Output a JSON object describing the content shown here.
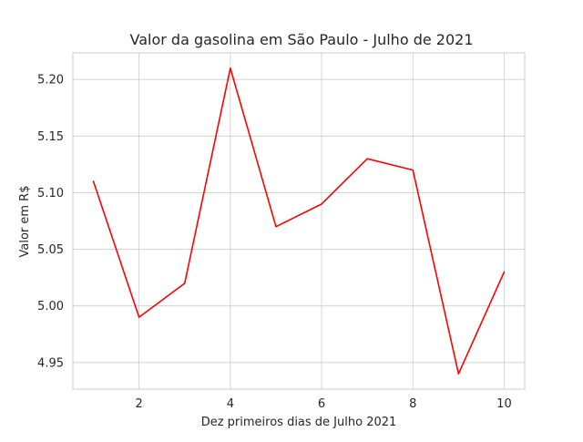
{
  "chart_data": {
    "type": "line",
    "title": "Valor da gasolina em São Paulo - Julho de 2021",
    "xlabel": "Dez primeiros dias de Julho 2021",
    "ylabel": "Valor em R$",
    "x": [
      1,
      2,
      3,
      4,
      5,
      6,
      7,
      8,
      9,
      10
    ],
    "series": [
      {
        "values": [
          5.11,
          4.99,
          5.02,
          5.21,
          5.07,
          5.09,
          5.13,
          5.12,
          4.94,
          5.03
        ],
        "color": "#ff0000"
      }
    ],
    "xticks": [
      2,
      4,
      6,
      8,
      10
    ],
    "xtick_labels": [
      "2",
      "4",
      "6",
      "8",
      "10"
    ],
    "yticks": [
      4.95,
      5.0,
      5.05,
      5.1,
      5.15,
      5.2
    ],
    "ytick_labels": [
      "4.95",
      "5.00",
      "5.05",
      "5.10",
      "5.15",
      "5.20"
    ],
    "xlim": [
      0.55,
      10.45
    ],
    "ylim": [
      4.9265,
      5.2235
    ],
    "grid": true,
    "style": "whitegrid"
  }
}
